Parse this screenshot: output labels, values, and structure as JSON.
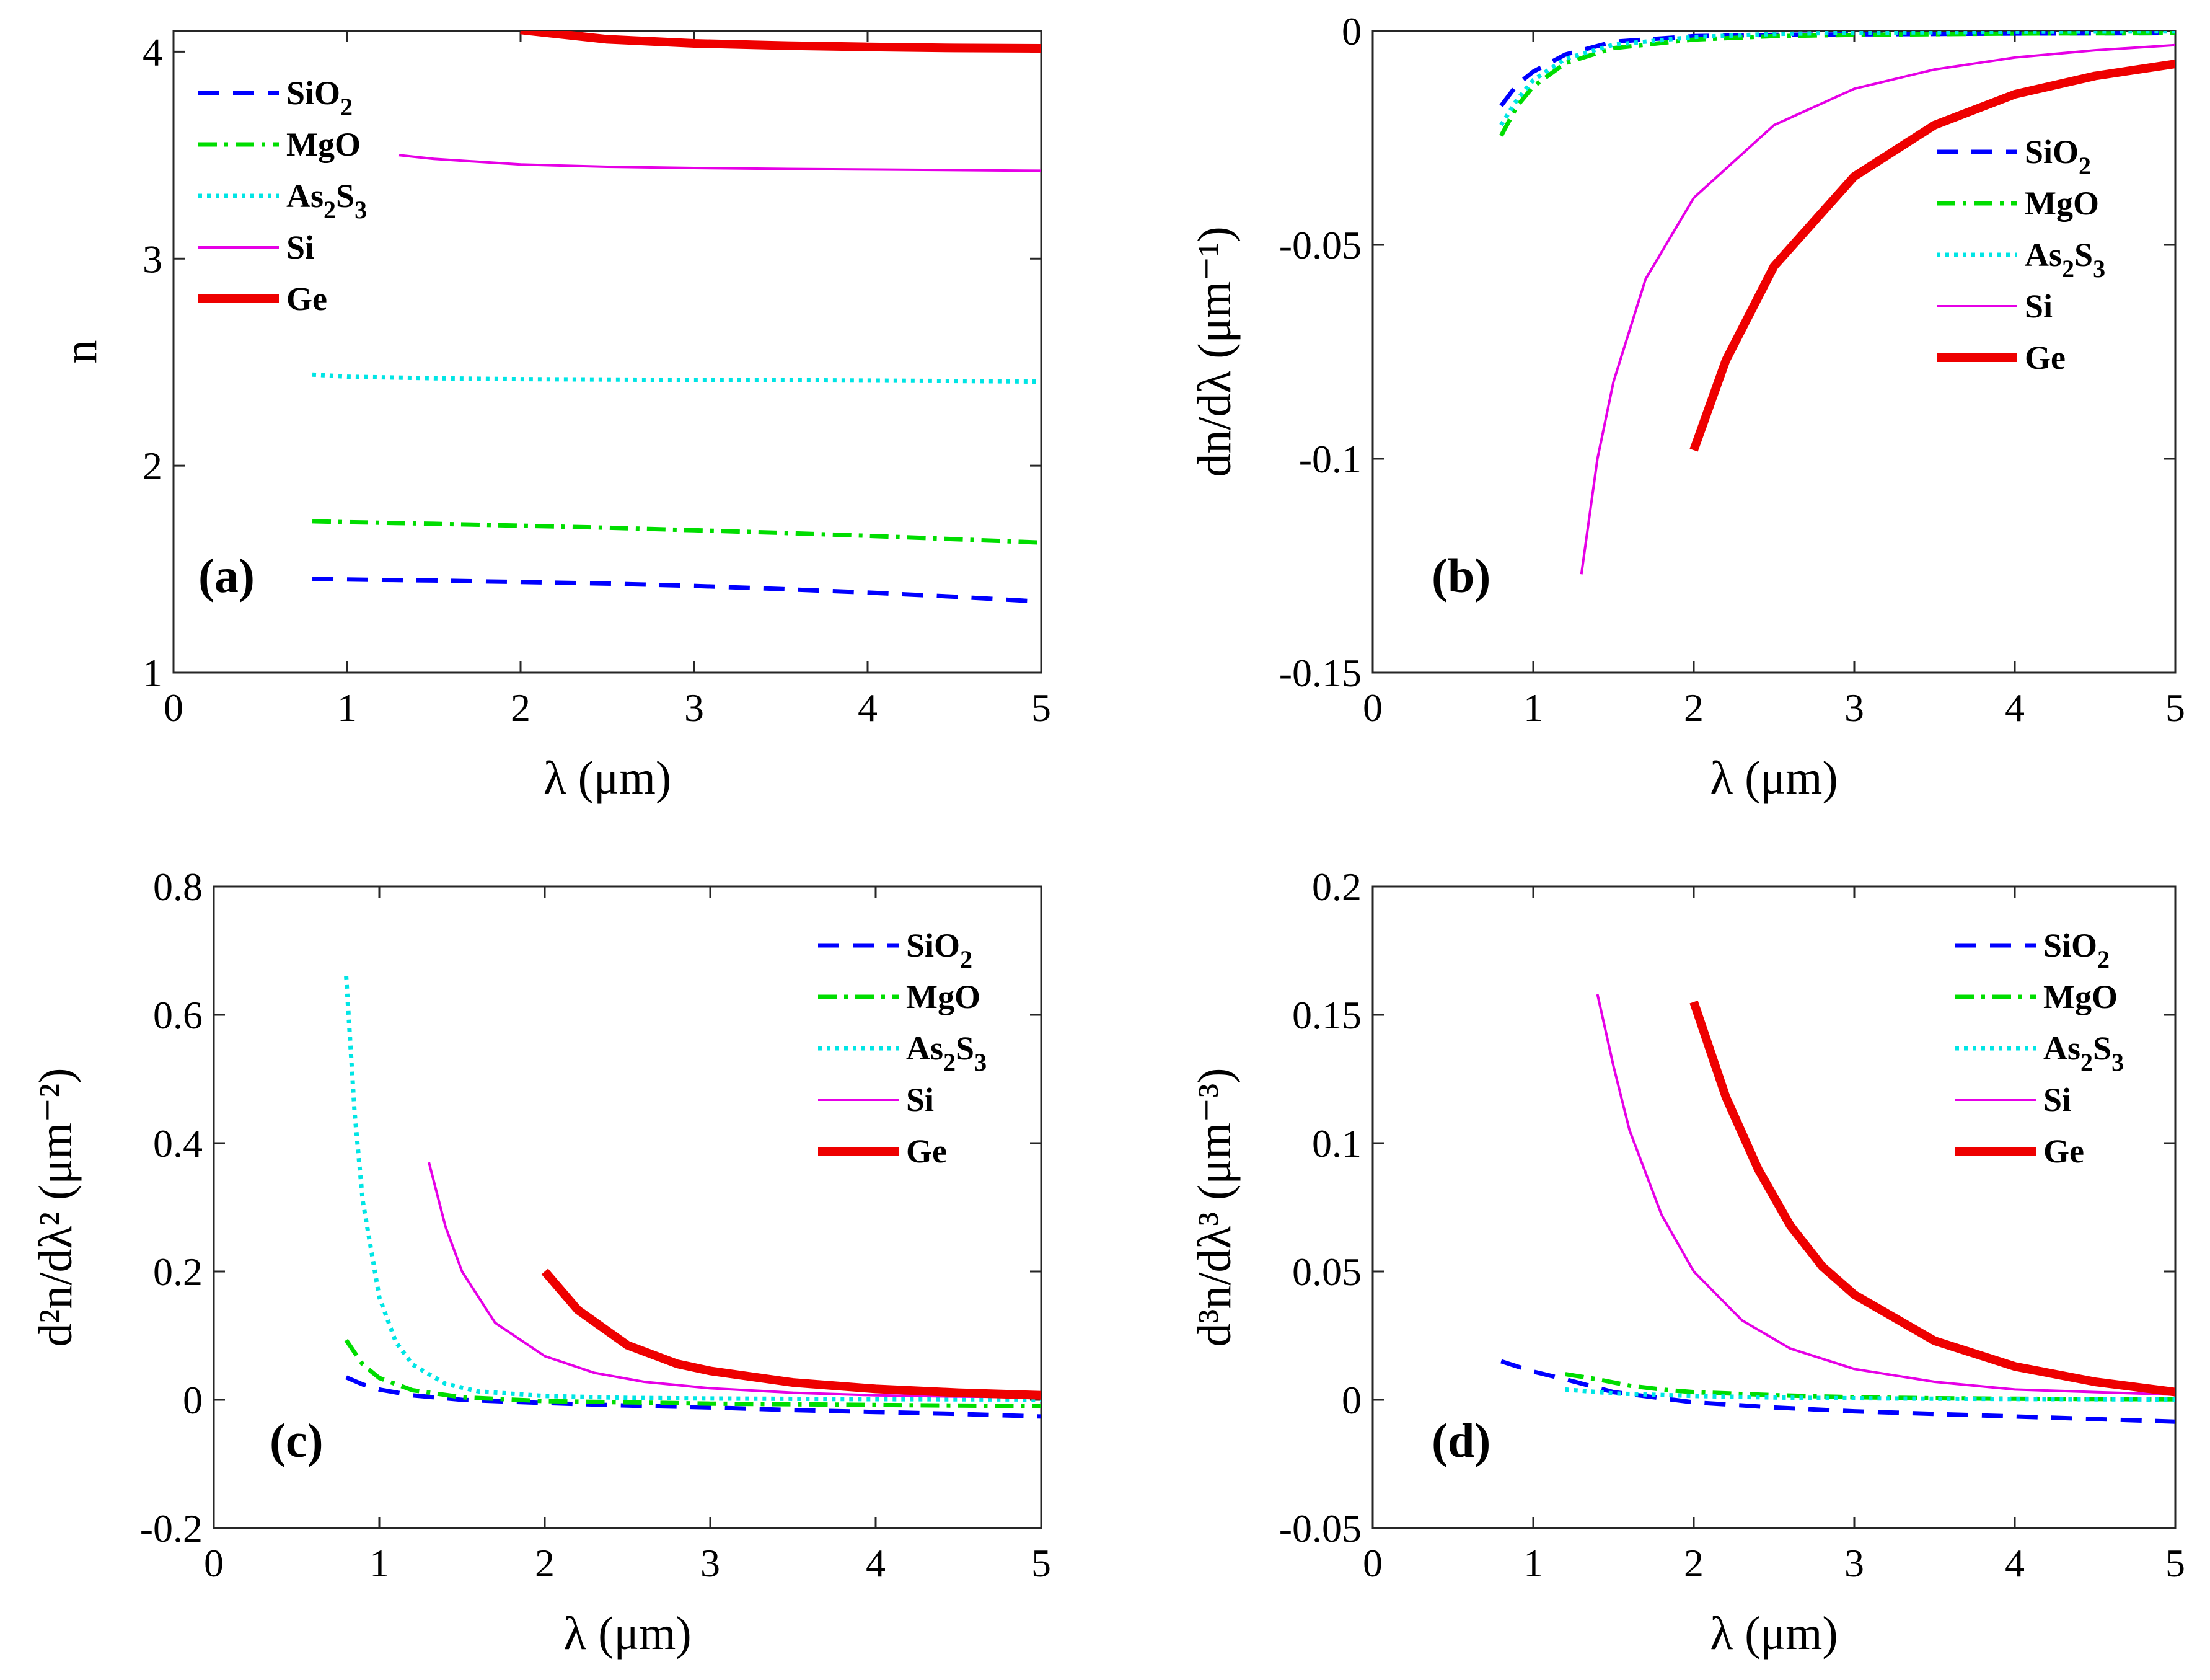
{
  "figure": {
    "series_styles": [
      {
        "key": "SiO2",
        "color": "#0000ff",
        "dash": "34,22"
      },
      {
        "key": "MgO",
        "color": "#00dd00",
        "dash": "30,12,6,12"
      },
      {
        "key": "As2S3",
        "color": "#00e5e5",
        "dash": "6,8"
      },
      {
        "key": "Si",
        "color": "#e600e6",
        "dash": ""
      },
      {
        "key": "Ge",
        "color": "#ee0000",
        "dash": ""
      }
    ]
  },
  "chart_data": [
    {
      "id": "a",
      "type": "line",
      "panel_label": "(a)",
      "xlabel": "λ (μm)",
      "ylabel": "n",
      "xlim": [
        0,
        5
      ],
      "ylim": [
        1,
        4.1
      ],
      "xticks": [
        0,
        1,
        2,
        3,
        4,
        5
      ],
      "yticks": [
        1,
        2,
        3,
        4
      ],
      "ytick_labels": [
        "1",
        "2",
        "3",
        "4"
      ],
      "legend": [
        {
          "key": "SiO2",
          "base": "SiO",
          "sub": "2"
        },
        {
          "key": "MgO",
          "base": "MgO",
          "sub": ""
        },
        {
          "key": "As2S3",
          "base": "As",
          "sub": "2",
          "base2": "S",
          "sub2": "3"
        },
        {
          "key": "Si",
          "base": "Si",
          "sub": ""
        },
        {
          "key": "Ge",
          "base": "Ge",
          "sub": ""
        }
      ],
      "legend_position": "top-left",
      "series": [
        {
          "name": "SiO2",
          "x": [
            0.8,
            1.0,
            1.5,
            2.0,
            2.5,
            3.0,
            3.5,
            4.0,
            4.5,
            5.0
          ],
          "y": [
            1.453,
            1.45,
            1.445,
            1.438,
            1.43,
            1.419,
            1.404,
            1.387,
            1.367,
            1.343
          ]
        },
        {
          "name": "MgO",
          "x": [
            0.8,
            1.0,
            1.5,
            2.0,
            2.5,
            3.0,
            3.5,
            4.0,
            4.5,
            5.0
          ],
          "y": [
            1.731,
            1.727,
            1.719,
            1.71,
            1.7,
            1.688,
            1.675,
            1.661,
            1.645,
            1.628
          ]
        },
        {
          "name": "As2S3",
          "x": [
            0.8,
            1.0,
            1.5,
            2.0,
            2.5,
            3.0,
            3.5,
            4.0,
            4.5,
            5.0
          ],
          "y": [
            2.44,
            2.43,
            2.422,
            2.418,
            2.416,
            2.414,
            2.413,
            2.411,
            2.409,
            2.406
          ]
        },
        {
          "name": "Si",
          "x": [
            1.3,
            1.5,
            2.0,
            2.5,
            3.0,
            3.5,
            4.0,
            4.5,
            5.0
          ],
          "y": [
            3.5,
            3.482,
            3.455,
            3.444,
            3.438,
            3.434,
            3.431,
            3.428,
            3.425
          ]
        },
        {
          "name": "Ge",
          "x": [
            2.0,
            2.5,
            3.0,
            3.5,
            4.0,
            4.5,
            5.0
          ],
          "y": [
            4.105,
            4.06,
            4.04,
            4.03,
            4.023,
            4.018,
            4.016
          ]
        }
      ]
    },
    {
      "id": "b",
      "type": "line",
      "panel_label": "(b)",
      "xlabel": "λ (μm)",
      "ylabel": "dn/dλ (μm⁻¹)",
      "xlim": [
        0,
        5
      ],
      "ylim": [
        -0.15,
        0
      ],
      "xticks": [
        0,
        1,
        2,
        3,
        4,
        5
      ],
      "yticks": [
        -0.15,
        -0.1,
        -0.05,
        0
      ],
      "ytick_labels": [
        "-0.15",
        "-0.1",
        "-0.05",
        "0"
      ],
      "legend": [
        {
          "key": "SiO2",
          "base": "SiO",
          "sub": "2"
        },
        {
          "key": "MgO",
          "base": "MgO",
          "sub": ""
        },
        {
          "key": "As2S3",
          "base": "As",
          "sub": "2",
          "base2": "S",
          "sub2": "3"
        },
        {
          "key": "Si",
          "base": "Si",
          "sub": ""
        },
        {
          "key": "Ge",
          "base": "Ge",
          "sub": ""
        }
      ],
      "legend_position": "right",
      "series": [
        {
          "name": "SiO2",
          "x": [
            0.8,
            0.9,
            1.0,
            1.2,
            1.5,
            2.0,
            2.5,
            3.0,
            4.0,
            5.0
          ],
          "y": [
            -0.0175,
            -0.0125,
            -0.0095,
            -0.0055,
            -0.0025,
            -0.0012,
            -0.0009,
            -0.0008,
            -0.0006,
            -0.0005
          ]
        },
        {
          "name": "MgO",
          "x": [
            0.8,
            0.9,
            1.0,
            1.2,
            1.5,
            2.0,
            2.5,
            3.0,
            4.0,
            5.0
          ],
          "y": [
            -0.0245,
            -0.0175,
            -0.013,
            -0.0075,
            -0.004,
            -0.002,
            -0.0012,
            -0.0009,
            -0.0006,
            -0.0005
          ]
        },
        {
          "name": "As2S3",
          "x": [
            0.8,
            0.9,
            1.0,
            1.2,
            1.5,
            2.0,
            2.5,
            3.0,
            4.0,
            5.0
          ],
          "y": [
            -0.022,
            -0.016,
            -0.0115,
            -0.0065,
            -0.0032,
            -0.0014,
            -0.0007,
            -0.0004,
            -0.0002,
            -0.0001
          ]
        },
        {
          "name": "Si",
          "x": [
            1.3,
            1.4,
            1.5,
            1.7,
            2.0,
            2.5,
            3.0,
            3.5,
            4.0,
            4.5,
            5.0
          ],
          "y": [
            -0.127,
            -0.1,
            -0.082,
            -0.058,
            -0.039,
            -0.022,
            -0.0135,
            -0.009,
            -0.0062,
            -0.0045,
            -0.0033
          ]
        },
        {
          "name": "Ge",
          "x": [
            2.0,
            2.2,
            2.5,
            3.0,
            3.5,
            4.0,
            4.5,
            5.0
          ],
          "y": [
            -0.098,
            -0.077,
            -0.055,
            -0.034,
            -0.022,
            -0.0148,
            -0.0105,
            -0.0077
          ]
        }
      ]
    },
    {
      "id": "c",
      "type": "line",
      "panel_label": "(c)",
      "xlabel": "λ (μm)",
      "ylabel": "d²n/dλ² (μm⁻²)",
      "xlim": [
        0,
        5
      ],
      "ylim": [
        -0.2,
        0.8
      ],
      "xticks": [
        0,
        1,
        2,
        3,
        4,
        5
      ],
      "yticks": [
        -0.2,
        0,
        0.2,
        0.4,
        0.6,
        0.8
      ],
      "ytick_labels": [
        "-0.2",
        "0",
        "0.2",
        "0.4",
        "0.6",
        "0.8"
      ],
      "legend": [
        {
          "key": "SiO2",
          "base": "SiO",
          "sub": "2"
        },
        {
          "key": "MgO",
          "base": "MgO",
          "sub": ""
        },
        {
          "key": "As2S3",
          "base": "As",
          "sub": "2",
          "base2": "S",
          "sub2": "3"
        },
        {
          "key": "Si",
          "base": "Si",
          "sub": ""
        },
        {
          "key": "Ge",
          "base": "Ge",
          "sub": ""
        }
      ],
      "legend_position": "top-right",
      "series": [
        {
          "name": "SiO2",
          "x": [
            0.8,
            0.9,
            1.0,
            1.2,
            1.5,
            2.0,
            2.5,
            3.0,
            3.5,
            4.0,
            4.5,
            5.0
          ],
          "y": [
            0.035,
            0.024,
            0.016,
            0.007,
            0.0,
            -0.005,
            -0.009,
            -0.012,
            -0.016,
            -0.019,
            -0.022,
            -0.026
          ]
        },
        {
          "name": "MgO",
          "x": [
            0.8,
            0.9,
            1.0,
            1.2,
            1.5,
            2.0,
            2.5,
            3.0,
            3.5,
            4.0,
            4.5,
            5.0
          ],
          "y": [
            0.093,
            0.055,
            0.034,
            0.015,
            0.004,
            -0.002,
            -0.004,
            -0.006,
            -0.007,
            -0.008,
            -0.009,
            -0.01
          ]
        },
        {
          "name": "As2S3",
          "x": [
            0.8,
            0.85,
            0.9,
            1.0,
            1.1,
            1.2,
            1.4,
            1.6,
            2.0,
            2.5,
            3.0,
            4.0,
            5.0
          ],
          "y": [
            0.66,
            0.45,
            0.31,
            0.16,
            0.09,
            0.055,
            0.025,
            0.013,
            0.006,
            0.003,
            0.002,
            0.001,
            0.0005
          ]
        },
        {
          "name": "Si",
          "x": [
            1.3,
            1.4,
            1.5,
            1.7,
            2.0,
            2.3,
            2.6,
            3.0,
            3.5,
            4.0,
            4.5,
            5.0
          ],
          "y": [
            0.37,
            0.27,
            0.2,
            0.12,
            0.068,
            0.042,
            0.028,
            0.018,
            0.011,
            0.007,
            0.005,
            0.004
          ]
        },
        {
          "name": "Ge",
          "x": [
            2.0,
            2.2,
            2.5,
            2.8,
            3.0,
            3.5,
            4.0,
            4.5,
            5.0
          ],
          "y": [
            0.2,
            0.14,
            0.085,
            0.056,
            0.045,
            0.027,
            0.017,
            0.011,
            0.007
          ]
        }
      ]
    },
    {
      "id": "d",
      "type": "line",
      "panel_label": "(d)",
      "xlabel": "λ (μm)",
      "ylabel": "d³n/dλ³ (μm⁻³)",
      "xlim": [
        0,
        5
      ],
      "ylim": [
        -0.05,
        0.2
      ],
      "xticks": [
        0,
        1,
        2,
        3,
        4,
        5
      ],
      "yticks": [
        -0.05,
        0,
        0.05,
        0.1,
        0.15,
        0.2
      ],
      "ytick_labels": [
        "-0.05",
        "0",
        "0.05",
        "0.1",
        "0.15",
        "0.2"
      ],
      "legend": [
        {
          "key": "SiO2",
          "base": "SiO",
          "sub": "2"
        },
        {
          "key": "MgO",
          "base": "MgO",
          "sub": ""
        },
        {
          "key": "As2S3",
          "base": "As",
          "sub": "2",
          "base2": "S",
          "sub2": "3"
        },
        {
          "key": "Si",
          "base": "Si",
          "sub": ""
        },
        {
          "key": "Ge",
          "base": "Ge",
          "sub": ""
        }
      ],
      "legend_position": "top-right",
      "series": [
        {
          "name": "SiO2",
          "x": [
            0.8,
            0.9,
            1.0,
            1.2,
            1.5,
            2.0,
            2.5,
            3.0,
            3.5,
            4.0,
            4.5,
            5.0
          ],
          "y": [
            0.015,
            0.013,
            0.011,
            0.008,
            0.003,
            -0.001,
            -0.003,
            -0.0045,
            -0.0055,
            -0.0065,
            -0.0075,
            -0.0085
          ]
        },
        {
          "name": "MgO",
          "x": [
            1.2,
            1.4,
            1.6,
            1.8,
            2.0,
            2.5,
            3.0,
            3.5,
            4.0,
            4.5,
            5.0
          ],
          "y": [
            0.01,
            0.008,
            0.0055,
            0.004,
            0.003,
            0.0018,
            0.001,
            0.0006,
            0.0004,
            0.0003,
            0.0002
          ]
        },
        {
          "name": "As2S3",
          "x": [
            1.2,
            1.5,
            2.0,
            2.5,
            3.0,
            3.5,
            4.0,
            4.5,
            5.0
          ],
          "y": [
            0.004,
            0.0025,
            0.0015,
            0.0009,
            0.0006,
            0.0004,
            0.0003,
            0.0002,
            0.0001
          ]
        },
        {
          "name": "Si",
          "x": [
            1.4,
            1.5,
            1.6,
            1.8,
            2.0,
            2.3,
            2.6,
            3.0,
            3.5,
            4.0,
            4.5,
            5.0
          ],
          "y": [
            0.158,
            0.13,
            0.105,
            0.072,
            0.05,
            0.031,
            0.02,
            0.012,
            0.007,
            0.004,
            0.003,
            0.002
          ]
        },
        {
          "name": "Ge",
          "x": [
            2.0,
            2.2,
            2.4,
            2.6,
            2.8,
            3.0,
            3.5,
            4.0,
            4.5,
            5.0
          ],
          "y": [
            0.155,
            0.118,
            0.09,
            0.068,
            0.052,
            0.041,
            0.023,
            0.013,
            0.007,
            0.003
          ]
        }
      ]
    }
  ]
}
